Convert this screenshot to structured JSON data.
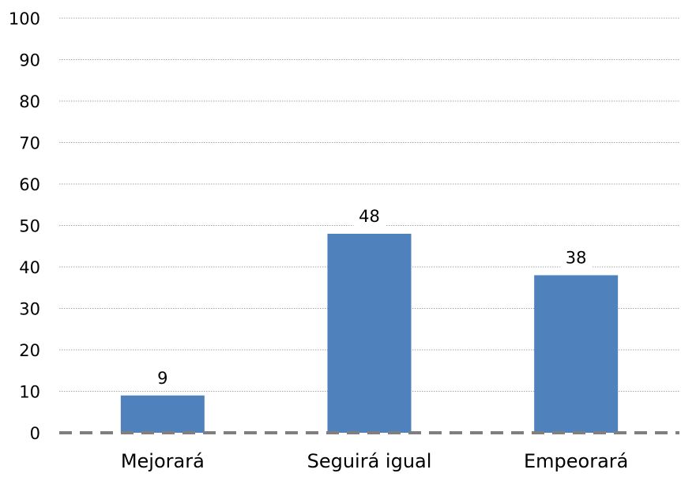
{
  "chart_data": {
    "type": "bar",
    "categories": [
      "Mejorará",
      "Seguirá igual",
      "Empeorará"
    ],
    "values": [
      9,
      48,
      38
    ],
    "data_labels": [
      "9",
      "48",
      "38"
    ],
    "ylim": [
      0,
      100
    ],
    "yticks": [
      0,
      10,
      20,
      30,
      40,
      50,
      60,
      70,
      80,
      90,
      100
    ],
    "title": "",
    "xlabel": "",
    "ylabel": "",
    "grid": true,
    "legend": "none",
    "bar_color": "#4f81bd",
    "baseline_color": "#7f7f7f",
    "grid_color": "#a6a6a6"
  }
}
